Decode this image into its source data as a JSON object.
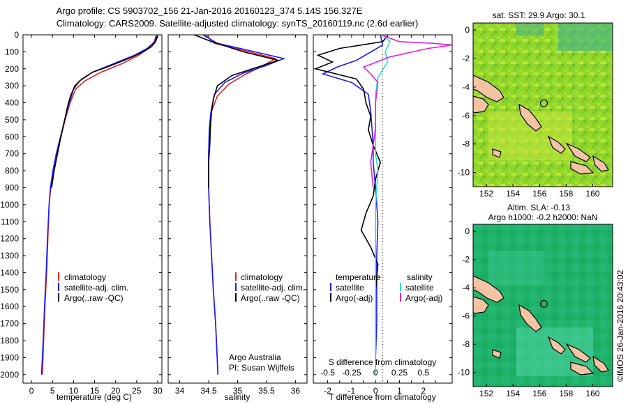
{
  "header": {
    "line1": "Argo profile: CS 5903702_156 21-Jan-2016 20160123_374 5.14S 156.327E",
    "line2": "Climatology: CARS2009. Satellite-adjusted climatology: synTS_20160119.nc (2.6d earlier)"
  },
  "credit": "Argo Australia",
  "pi": "PI: Susan Wijffels",
  "stamp": "©IMOS 26-Jan-2016 20:43:02",
  "legend_panel1": [
    "climatology",
    "satellite-adj. clim.",
    "Argo(..raw -QC)"
  ],
  "legend_panel3": {
    "temperature_title": "temperature",
    "salinity_title": "salinity",
    "t_items": [
      "satellite",
      "Argo(-adj)"
    ],
    "s_items": [
      "satellite",
      "Argo(-adj)"
    ]
  },
  "colors": {
    "climatology": "#e02020",
    "satellite": "#1a1aff",
    "argo": "#000000",
    "s_satellite": "#22e0e0",
    "s_argo": "#e020e0",
    "land": "#f2c4a4",
    "sst_field": "#8fd62a",
    "sla_field": "#1fb36a"
  },
  "chart_data": [
    {
      "type": "line",
      "xlabel": "temperature (deg C)",
      "ylabel": "",
      "xlim": [
        -2,
        31
      ],
      "ylim": [
        2050,
        0
      ],
      "xticks": [
        0,
        5,
        10,
        15,
        20,
        25,
        30
      ],
      "yticks": [
        0,
        100,
        200,
        300,
        400,
        500,
        600,
        700,
        800,
        900,
        1000,
        1100,
        1200,
        1300,
        1400,
        1500,
        1600,
        1700,
        1800,
        1900,
        2000
      ],
      "series": [
        {
          "name": "climatology",
          "color": "#e02020",
          "points": [
            [
              29.6,
              5
            ],
            [
              29.2,
              40
            ],
            [
              27.8,
              80
            ],
            [
              25.5,
              120
            ],
            [
              21.5,
              170
            ],
            [
              16.5,
              220
            ],
            [
              12.8,
              270
            ],
            [
              10.5,
              320
            ],
            [
              9.2,
              400
            ],
            [
              8.0,
              500
            ],
            [
              7.0,
              600
            ],
            [
              6.0,
              700
            ],
            [
              5.2,
              800
            ],
            [
              4.6,
              900
            ],
            [
              4.2,
              1000
            ],
            [
              3.9,
              1200
            ],
            [
              3.6,
              1400
            ],
            [
              3.2,
              1600
            ],
            [
              2.9,
              1800
            ],
            [
              2.6,
              2000
            ]
          ]
        },
        {
          "name": "satellite-adj. clim.",
          "color": "#1a1aff",
          "points": [
            [
              29.8,
              5
            ],
            [
              29.3,
              40
            ],
            [
              27.5,
              80
            ],
            [
              24.5,
              120
            ],
            [
              19.5,
              170
            ],
            [
              14.5,
              220
            ],
            [
              11.5,
              270
            ],
            [
              10.0,
              320
            ],
            [
              9.0,
              400
            ],
            [
              7.9,
              500
            ],
            [
              6.9,
              600
            ],
            [
              5.9,
              700
            ],
            [
              5.1,
              800
            ],
            [
              4.5,
              900
            ],
            [
              4.2,
              1000
            ],
            [
              3.8,
              1200
            ],
            [
              3.5,
              1400
            ],
            [
              3.1,
              1600
            ],
            [
              2.8,
              1800
            ],
            [
              2.4,
              2000
            ]
          ]
        },
        {
          "name": "Argo(..raw -QC)",
          "color": "#000000",
          "points": [
            [
              30.0,
              5
            ],
            [
              29.8,
              20
            ],
            [
              29.5,
              40
            ],
            [
              28.5,
              70
            ],
            [
              26.5,
              100
            ],
            [
              24.0,
              130
            ],
            [
              21.0,
              160
            ],
            [
              18.0,
              190
            ],
            [
              14.5,
              220
            ],
            [
              12.0,
              260
            ],
            [
              10.3,
              300
            ],
            [
              9.3,
              360
            ],
            [
              8.6,
              420
            ],
            [
              7.9,
              500
            ],
            [
              7.0,
              600
            ],
            [
              6.2,
              700
            ],
            [
              5.4,
              800
            ],
            [
              4.8,
              900
            ]
          ]
        }
      ]
    },
    {
      "type": "line",
      "xlabel": "salinity",
      "ylabel": "",
      "xlim": [
        33.8,
        36.2
      ],
      "ylim": [
        2050,
        0
      ],
      "xticks": [
        34,
        34.5,
        35,
        35.5,
        36
      ],
      "series": [
        {
          "name": "climatology",
          "color": "#e02020",
          "points": [
            [
              34.45,
              0
            ],
            [
              34.6,
              50
            ],
            [
              35.2,
              100
            ],
            [
              35.65,
              140
            ],
            [
              35.45,
              180
            ],
            [
              35.15,
              230
            ],
            [
              34.85,
              290
            ],
            [
              34.65,
              360
            ],
            [
              34.55,
              450
            ],
            [
              34.52,
              550
            ],
            [
              34.5,
              700
            ],
            [
              34.5,
              900
            ],
            [
              34.52,
              1100
            ],
            [
              34.55,
              1300
            ],
            [
              34.58,
              1500
            ],
            [
              34.62,
              1700
            ],
            [
              34.64,
              1850
            ],
            [
              34.66,
              2000
            ]
          ]
        },
        {
          "name": "satellite-adj. clim.",
          "color": "#1a1aff",
          "points": [
            [
              34.4,
              0
            ],
            [
              34.65,
              50
            ],
            [
              35.3,
              100
            ],
            [
              35.8,
              140
            ],
            [
              35.5,
              180
            ],
            [
              35.1,
              225
            ],
            [
              34.78,
              280
            ],
            [
              34.6,
              350
            ],
            [
              34.54,
              450
            ],
            [
              34.51,
              550
            ],
            [
              34.5,
              700
            ],
            [
              34.5,
              900
            ],
            [
              34.52,
              1100
            ],
            [
              34.55,
              1300
            ],
            [
              34.58,
              1500
            ],
            [
              34.62,
              1700
            ],
            [
              34.64,
              1850
            ],
            [
              34.66,
              2000
            ]
          ]
        },
        {
          "name": "Argo(..raw -QC)",
          "color": "#000000",
          "points": [
            [
              34.25,
              0
            ],
            [
              34.55,
              40
            ],
            [
              35.1,
              100
            ],
            [
              35.7,
              150
            ],
            [
              35.35,
              190
            ],
            [
              34.9,
              240
            ],
            [
              34.65,
              300
            ],
            [
              34.58,
              380
            ],
            [
              34.55,
              450
            ],
            [
              34.53,
              550
            ],
            [
              34.52,
              650
            ],
            [
              34.5,
              750
            ],
            [
              34.5,
              900
            ]
          ]
        }
      ]
    },
    {
      "type": "line",
      "xlabel": "T difference from climatology",
      "x2label": "S difference from climatology",
      "xlim": [
        -2.6,
        3.2
      ],
      "ylim": [
        2050,
        0
      ],
      "xticks": [
        -2,
        -1.5,
        -1,
        -0.5,
        0,
        0.5,
        1,
        1.5,
        2,
        2.5
      ],
      "xtick_labels": [
        "-2",
        "",
        "-1",
        "",
        "0",
        "",
        "1",
        "",
        "2",
        ""
      ],
      "x2ticks": [
        -0.5,
        -0.25,
        0,
        0.25,
        0.5
      ],
      "x2_scale": 4,
      "series": [
        {
          "name": "temperature satellite",
          "color": "#1a1aff",
          "points": [
            [
              0.2,
              0
            ],
            [
              0.3,
              60
            ],
            [
              -0.8,
              150
            ],
            [
              -1.6,
              190
            ],
            [
              -2.2,
              230
            ],
            [
              -1.0,
              280
            ],
            [
              -0.3,
              350
            ],
            [
              -0.2,
              450
            ],
            [
              -0.15,
              550
            ],
            [
              -0.1,
              650
            ],
            [
              -0.1,
              750
            ],
            [
              0.0,
              900
            ],
            [
              0.1,
              1100
            ],
            [
              0.05,
              1300
            ],
            [
              0.05,
              1500
            ],
            [
              0.05,
              1700
            ],
            [
              0.0,
              1900
            ],
            [
              0.0,
              1960
            ]
          ]
        },
        {
          "name": "temperature Argo(-adj)",
          "color": "#000000",
          "points": [
            [
              0.5,
              5
            ],
            [
              0.3,
              40
            ],
            [
              -1.5,
              80
            ],
            [
              -2.4,
              120
            ],
            [
              -1.8,
              160
            ],
            [
              -2.5,
              200
            ],
            [
              -0.8,
              260
            ],
            [
              -0.5,
              320
            ],
            [
              -0.4,
              400
            ],
            [
              -0.2,
              480
            ],
            [
              -0.3,
              560
            ],
            [
              -0.1,
              650
            ],
            [
              0.2,
              750
            ],
            [
              0.0,
              850
            ],
            [
              -0.1,
              950
            ],
            [
              -0.4,
              1050
            ],
            [
              -0.6,
              1150
            ],
            [
              -0.2,
              1250
            ],
            [
              0.1,
              1350
            ],
            [
              0.0,
              1500
            ],
            [
              0.0,
              1700
            ],
            [
              0.0,
              1950
            ]
          ]
        },
        {
          "name": "salinity satellite",
          "color": "#22e0e0",
          "points": [
            [
              0.3,
              0
            ],
            [
              0.6,
              40
            ],
            [
              0.4,
              100
            ],
            [
              0.5,
              160
            ],
            [
              0.1,
              250
            ],
            [
              0.0,
              350
            ],
            [
              0.0,
              500
            ],
            [
              0.0,
              700
            ],
            [
              0.1,
              800
            ],
            [
              0.0,
              1000
            ],
            [
              0.0,
              1500
            ],
            [
              0.0,
              2000
            ]
          ]
        },
        {
          "name": "salinity Argo(-adj)",
          "color": "#e020e0",
          "points": [
            [
              0.2,
              0
            ],
            [
              1.0,
              40
            ],
            [
              2.4,
              50
            ],
            [
              3.2,
              60
            ],
            [
              2.2,
              80
            ],
            [
              0.6,
              130
            ],
            [
              -0.5,
              190
            ],
            [
              -0.2,
              230
            ],
            [
              0.1,
              280
            ],
            [
              0.0,
              400
            ],
            [
              0.0,
              550
            ],
            [
              -0.1,
              650
            ],
            [
              -0.2,
              750
            ],
            [
              -0.1,
              900
            ]
          ]
        }
      ]
    },
    {
      "type": "heatmap",
      "title": "sat. SST: 29.9 Argo: 30.1",
      "xlim": [
        151,
        161.5
      ],
      "ylim": [
        -11,
        0.5
      ],
      "xticks": [
        152,
        154,
        156,
        158,
        160
      ],
      "yticks": [
        0,
        -2,
        -4,
        -6,
        -8,
        -10
      ],
      "marker": [
        156.33,
        -5.14
      ]
    },
    {
      "type": "heatmap",
      "title": "Altim. SLA: -0.13",
      "subtitle": "Argo h1000: -0.2 h2000: NaN",
      "xlim": [
        151,
        161.5
      ],
      "ylim": [
        -11,
        0.5
      ],
      "xticks": [
        152,
        154,
        156,
        158,
        160
      ],
      "yticks": [
        0,
        -2,
        -4,
        -6,
        -8,
        -10
      ],
      "marker": [
        156.33,
        -5.14
      ]
    }
  ]
}
